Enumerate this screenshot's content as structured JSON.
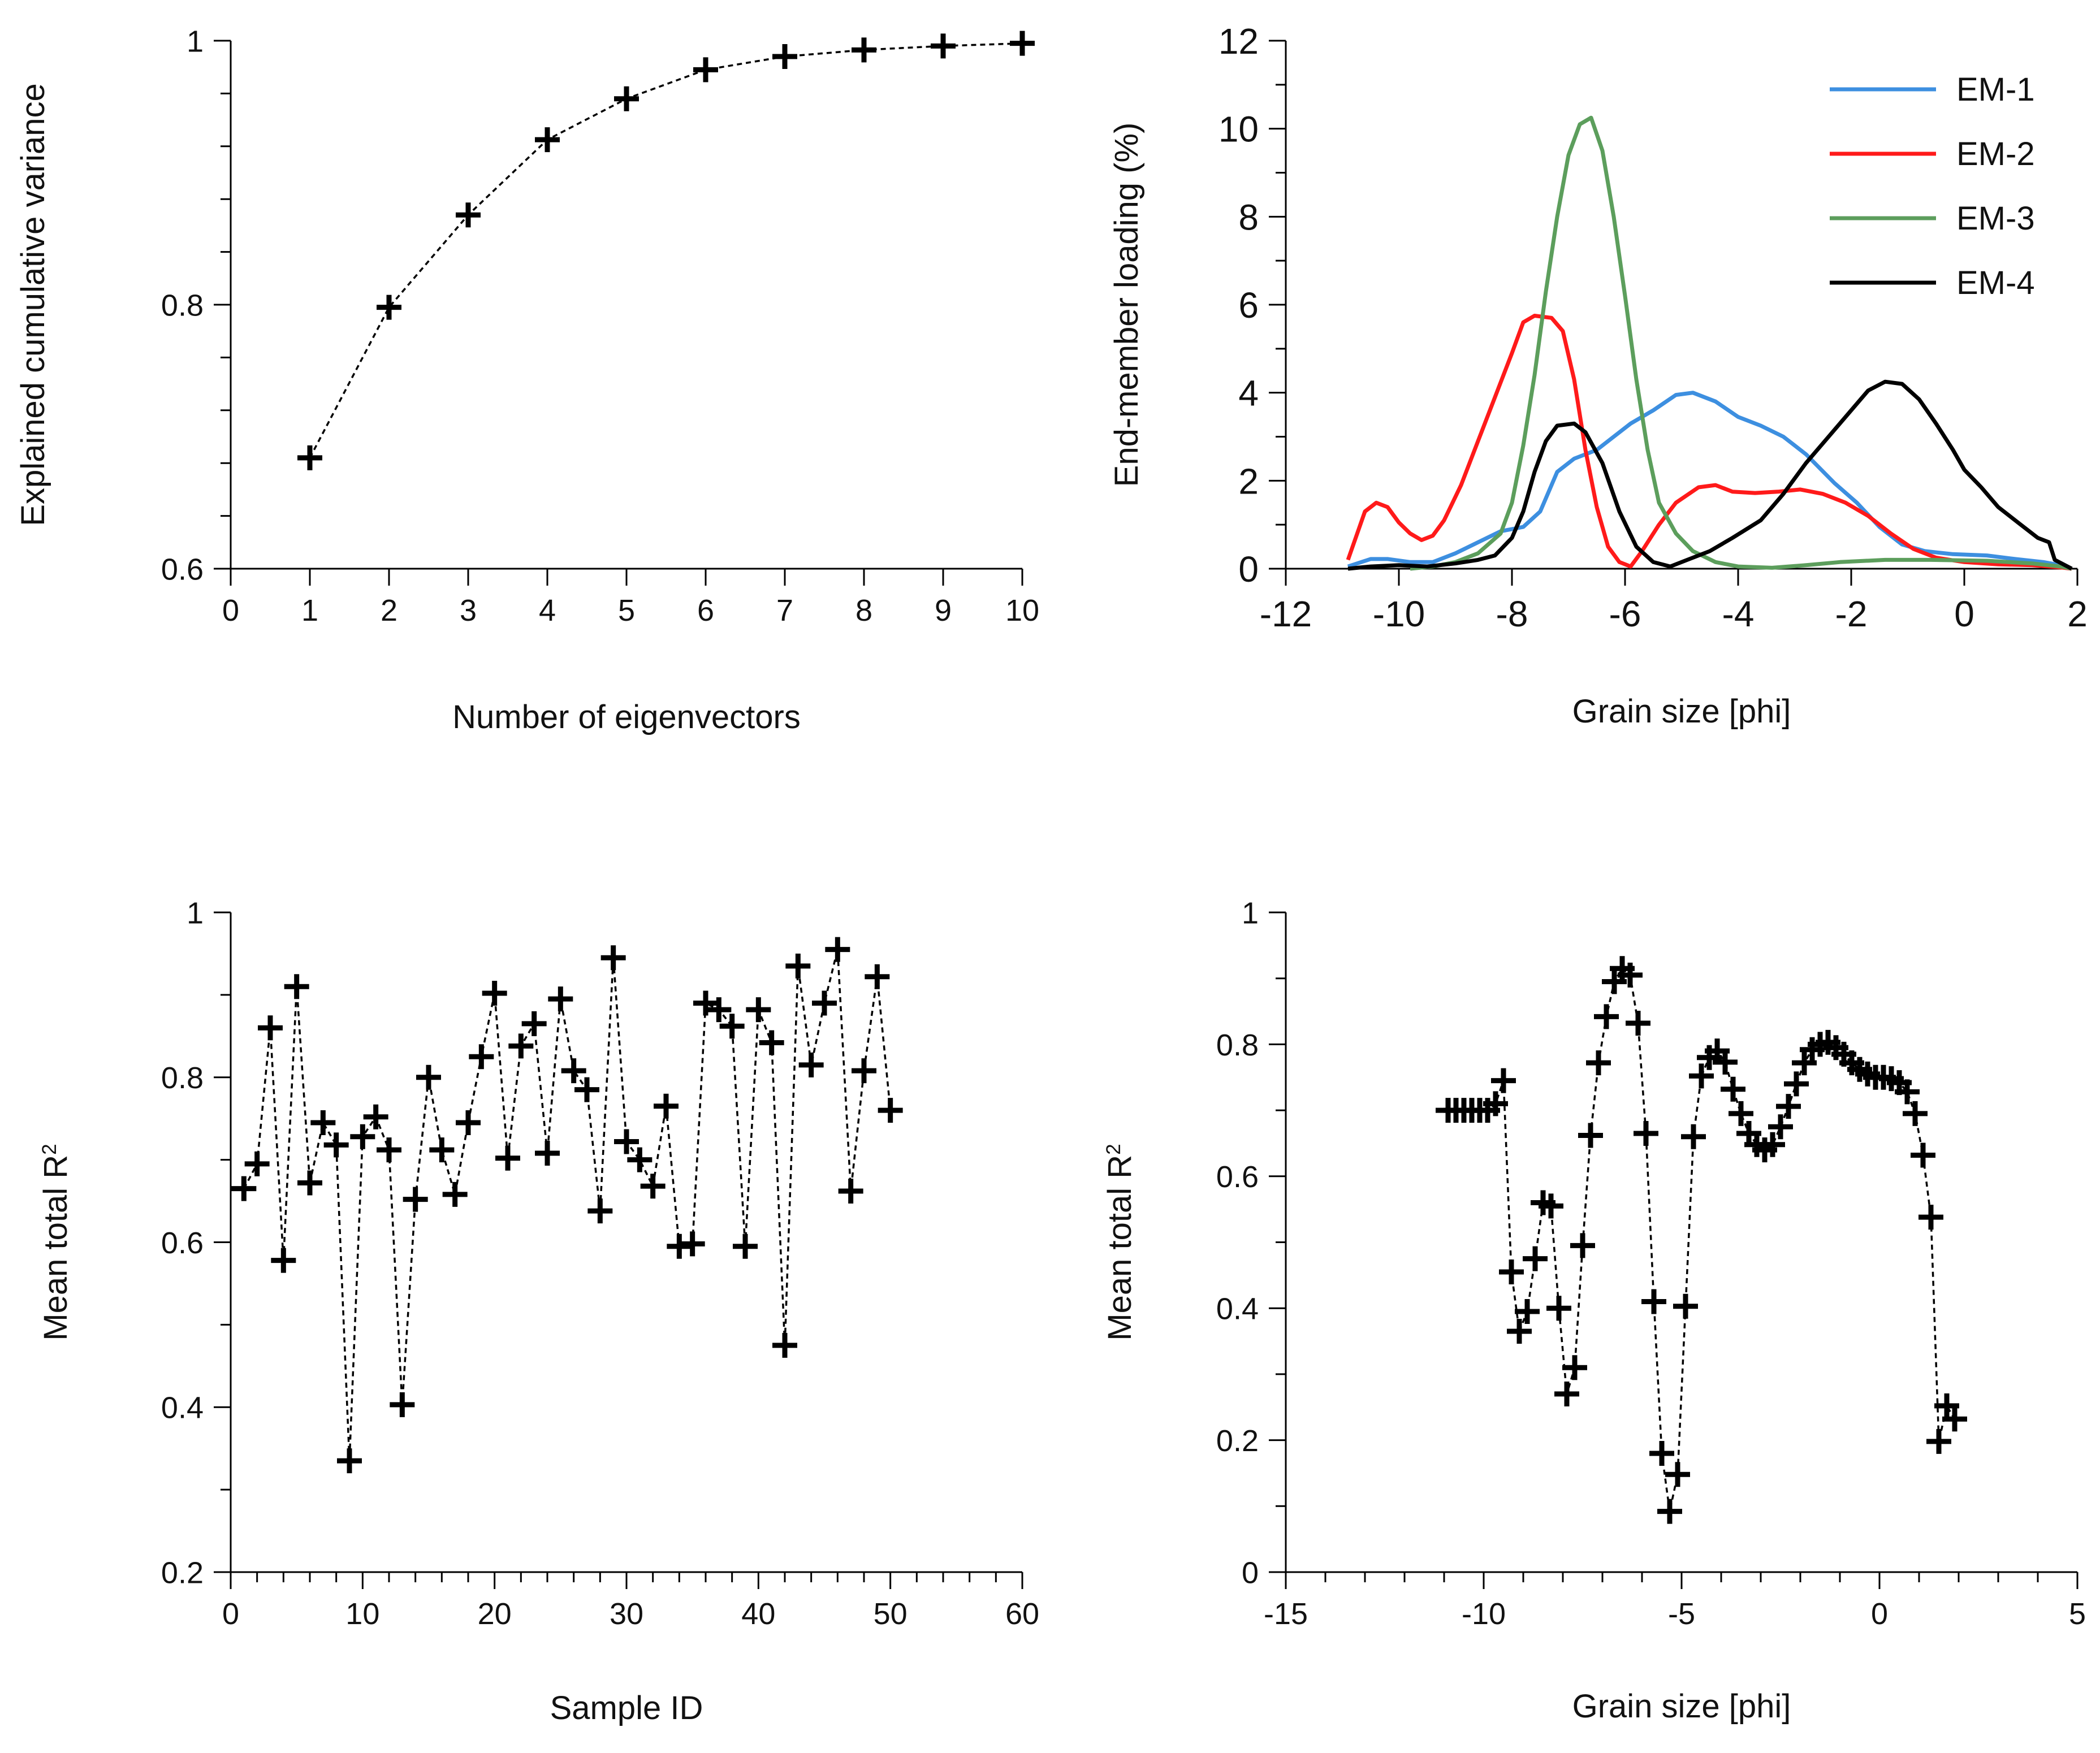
{
  "figure": {
    "panels": [
      {
        "id": "variance-panel"
      },
      {
        "id": "loading-panel"
      },
      {
        "id": "sample-panel"
      },
      {
        "id": "grain-panel"
      }
    ]
  },
  "chart_data": [
    {
      "type": "line",
      "name": "explained-variance",
      "title": "",
      "xlabel": "Number of eigenvectors",
      "ylabel": "Explained cumulative variance",
      "xlim": [
        0,
        10
      ],
      "ylim": [
        0.6,
        1
      ],
      "xticks": [
        0,
        1,
        2,
        3,
        4,
        5,
        6,
        7,
        8,
        9,
        10
      ],
      "xtick_labels": [
        "0",
        "1",
        "2",
        "3",
        "4",
        "5",
        "6",
        "7",
        "8",
        "9",
        "10"
      ],
      "yticks": [
        0.6,
        0.8,
        1
      ],
      "ytick_labels": [
        "0.6",
        "0.8",
        "1"
      ],
      "yminor": [
        0.6,
        0.64,
        0.68,
        0.72,
        0.76,
        0.8,
        0.84,
        0.88,
        0.92,
        0.96,
        1.0
      ],
      "marker": "plus",
      "line_style": "dashed",
      "color": "#000000",
      "x": [
        1,
        2,
        3,
        4,
        5,
        6,
        7,
        8,
        9,
        10
      ],
      "y": [
        0.684,
        0.798,
        0.868,
        0.925,
        0.956,
        0.978,
        0.988,
        0.993,
        0.996,
        0.998
      ]
    },
    {
      "type": "line",
      "name": "end-member-loadings",
      "title": "",
      "xlabel": "Grain size [phi]",
      "ylabel": "End-member loading (%)",
      "xlim": [
        -12,
        2
      ],
      "ylim": [
        0,
        12
      ],
      "xticks": [
        -12,
        -10,
        -8,
        -6,
        -4,
        -2,
        0,
        2
      ],
      "xtick_labels": [
        "-12",
        "-10",
        "-8",
        "-6",
        "-4",
        "-2",
        "0",
        "2"
      ],
      "yticks": [
        0,
        2,
        4,
        6,
        8,
        10,
        12
      ],
      "ytick_labels": [
        "0",
        "2",
        "4",
        "6",
        "8",
        "10",
        "12"
      ],
      "legend_position": "top-right",
      "series": [
        {
          "name": "EM-1",
          "color": "#3d8fe0",
          "points": [
            [
              -10.9,
              0.05
            ],
            [
              -10.5,
              0.22
            ],
            [
              -10.2,
              0.22
            ],
            [
              -9.8,
              0.15
            ],
            [
              -9.4,
              0.15
            ],
            [
              -9.0,
              0.35
            ],
            [
              -8.6,
              0.6
            ],
            [
              -8.2,
              0.85
            ],
            [
              -7.8,
              0.95
            ],
            [
              -7.5,
              1.3
            ],
            [
              -7.2,
              2.2
            ],
            [
              -6.9,
              2.5
            ],
            [
              -6.5,
              2.7
            ],
            [
              -6.2,
              3.0
            ],
            [
              -5.9,
              3.3
            ],
            [
              -5.5,
              3.6
            ],
            [
              -5.1,
              3.95
            ],
            [
              -4.8,
              4.0
            ],
            [
              -4.4,
              3.8
            ],
            [
              -4.0,
              3.45
            ],
            [
              -3.6,
              3.25
            ],
            [
              -3.2,
              3.0
            ],
            [
              -2.8,
              2.6
            ],
            [
              -2.3,
              1.95
            ],
            [
              -1.9,
              1.5
            ],
            [
              -1.5,
              0.95
            ],
            [
              -1.1,
              0.55
            ],
            [
              -0.7,
              0.4
            ],
            [
              -0.2,
              0.33
            ],
            [
              0.4,
              0.3
            ],
            [
              0.9,
              0.22
            ],
            [
              1.4,
              0.15
            ],
            [
              1.7,
              0.08
            ],
            [
              1.9,
              0.0
            ]
          ]
        },
        {
          "name": "EM-2",
          "color": "#ff1a1a",
          "points": [
            [
              -10.9,
              0.2
            ],
            [
              -10.6,
              1.3
            ],
            [
              -10.4,
              1.5
            ],
            [
              -10.2,
              1.4
            ],
            [
              -10.0,
              1.05
            ],
            [
              -9.8,
              0.8
            ],
            [
              -9.6,
              0.65
            ],
            [
              -9.4,
              0.75
            ],
            [
              -9.2,
              1.1
            ],
            [
              -8.9,
              1.9
            ],
            [
              -8.6,
              2.9
            ],
            [
              -8.3,
              3.9
            ],
            [
              -8.0,
              4.9
            ],
            [
              -7.8,
              5.6
            ],
            [
              -7.6,
              5.75
            ],
            [
              -7.3,
              5.7
            ],
            [
              -7.1,
              5.4
            ],
            [
              -6.9,
              4.3
            ],
            [
              -6.7,
              2.7
            ],
            [
              -6.5,
              1.4
            ],
            [
              -6.3,
              0.5
            ],
            [
              -6.1,
              0.15
            ],
            [
              -5.9,
              0.05
            ],
            [
              -5.7,
              0.4
            ],
            [
              -5.4,
              1.0
            ],
            [
              -5.1,
              1.5
            ],
            [
              -4.7,
              1.85
            ],
            [
              -4.4,
              1.9
            ],
            [
              -4.1,
              1.75
            ],
            [
              -3.7,
              1.72
            ],
            [
              -3.3,
              1.75
            ],
            [
              -2.9,
              1.8
            ],
            [
              -2.5,
              1.7
            ],
            [
              -2.1,
              1.5
            ],
            [
              -1.7,
              1.2
            ],
            [
              -1.3,
              0.8
            ],
            [
              -0.9,
              0.45
            ],
            [
              -0.5,
              0.25
            ],
            [
              0.0,
              0.15
            ],
            [
              0.6,
              0.1
            ],
            [
              1.2,
              0.08
            ],
            [
              1.7,
              0.03
            ],
            [
              1.9,
              0.0
            ]
          ]
        },
        {
          "name": "EM-3",
          "color": "#5c9e5c",
          "points": [
            [
              -9.8,
              0.0
            ],
            [
              -9.4,
              0.05
            ],
            [
              -9.0,
              0.15
            ],
            [
              -8.6,
              0.35
            ],
            [
              -8.2,
              0.8
            ],
            [
              -8.0,
              1.5
            ],
            [
              -7.8,
              2.8
            ],
            [
              -7.6,
              4.4
            ],
            [
              -7.4,
              6.3
            ],
            [
              -7.2,
              8.0
            ],
            [
              -7.0,
              9.4
            ],
            [
              -6.8,
              10.1
            ],
            [
              -6.6,
              10.25
            ],
            [
              -6.4,
              9.5
            ],
            [
              -6.2,
              8.0
            ],
            [
              -6.0,
              6.2
            ],
            [
              -5.8,
              4.3
            ],
            [
              -5.6,
              2.7
            ],
            [
              -5.4,
              1.5
            ],
            [
              -5.1,
              0.8
            ],
            [
              -4.8,
              0.4
            ],
            [
              -4.4,
              0.15
            ],
            [
              -4.0,
              0.05
            ],
            [
              -3.4,
              0.02
            ],
            [
              -2.8,
              0.08
            ],
            [
              -2.2,
              0.15
            ],
            [
              -1.4,
              0.2
            ],
            [
              -0.6,
              0.2
            ],
            [
              0.4,
              0.18
            ],
            [
              1.2,
              0.12
            ],
            [
              1.7,
              0.05
            ],
            [
              1.9,
              0.0
            ]
          ]
        },
        {
          "name": "EM-4",
          "color": "#000000",
          "points": [
            [
              -10.9,
              0.0
            ],
            [
              -10.5,
              0.05
            ],
            [
              -10.0,
              0.08
            ],
            [
              -9.5,
              0.05
            ],
            [
              -9.0,
              0.12
            ],
            [
              -8.6,
              0.2
            ],
            [
              -8.3,
              0.3
            ],
            [
              -8.0,
              0.7
            ],
            [
              -7.8,
              1.3
            ],
            [
              -7.6,
              2.2
            ],
            [
              -7.4,
              2.9
            ],
            [
              -7.2,
              3.25
            ],
            [
              -6.9,
              3.3
            ],
            [
              -6.7,
              3.1
            ],
            [
              -6.4,
              2.4
            ],
            [
              -6.1,
              1.3
            ],
            [
              -5.8,
              0.5
            ],
            [
              -5.5,
              0.15
            ],
            [
              -5.2,
              0.05
            ],
            [
              -4.9,
              0.2
            ],
            [
              -4.5,
              0.4
            ],
            [
              -4.1,
              0.7
            ],
            [
              -3.6,
              1.1
            ],
            [
              -3.2,
              1.7
            ],
            [
              -2.8,
              2.4
            ],
            [
              -2.4,
              3.0
            ],
            [
              -2.0,
              3.6
            ],
            [
              -1.7,
              4.05
            ],
            [
              -1.4,
              4.25
            ],
            [
              -1.1,
              4.2
            ],
            [
              -0.8,
              3.85
            ],
            [
              -0.5,
              3.3
            ],
            [
              -0.2,
              2.7
            ],
            [
              0.0,
              2.25
            ],
            [
              0.3,
              1.85
            ],
            [
              0.6,
              1.4
            ],
            [
              1.0,
              1.0
            ],
            [
              1.3,
              0.7
            ],
            [
              1.5,
              0.6
            ],
            [
              1.6,
              0.2
            ],
            [
              1.9,
              0.0
            ]
          ]
        }
      ]
    },
    {
      "type": "line",
      "name": "sample-r2",
      "title": "",
      "xlabel": "Sample ID",
      "ylabel_main": "Mean total R",
      "ylabel_sup": "2",
      "xlim": [
        0,
        60
      ],
      "ylim": [
        0.2,
        1
      ],
      "xticks": [
        0,
        10,
        20,
        30,
        40,
        50,
        60
      ],
      "xtick_labels": [
        "0",
        "10",
        "20",
        "30",
        "40",
        "50",
        "60"
      ],
      "xminor_step": 2,
      "yticks": [
        0.2,
        0.4,
        0.6,
        0.8,
        1
      ],
      "ytick_labels": [
        "0.2",
        "0.4",
        "0.6",
        "0.8",
        "1"
      ],
      "yminor_step": 0.1,
      "marker": "plus",
      "line_style": "dashed",
      "color": "#000000",
      "x": [
        1,
        2,
        3,
        4,
        5,
        6,
        7,
        8,
        9,
        10,
        11,
        12,
        13,
        14,
        15,
        16,
        17,
        18,
        19,
        20,
        21,
        22,
        23,
        24,
        25,
        26,
        27,
        28,
        29,
        30,
        31,
        32,
        33,
        34,
        35,
        36,
        37,
        38,
        39,
        40,
        41,
        42,
        43,
        44,
        45,
        46,
        47,
        48,
        49,
        50
      ],
      "y": [
        0.665,
        0.695,
        0.86,
        0.578,
        0.91,
        0.672,
        0.745,
        0.718,
        0.335,
        0.728,
        0.752,
        0.712,
        0.403,
        0.652,
        0.8,
        0.712,
        0.658,
        0.745,
        0.825,
        0.902,
        0.702,
        0.838,
        0.865,
        0.708,
        0.895,
        0.808,
        0.785,
        0.638,
        0.945,
        0.722,
        0.7,
        0.668,
        0.765,
        0.595,
        0.598,
        0.89,
        0.882,
        0.862,
        0.595,
        0.882,
        0.842,
        0.475,
        0.935,
        0.815,
        0.89,
        0.955,
        0.662,
        0.808,
        0.922,
        0.76
      ]
    },
    {
      "type": "line",
      "name": "grain-r2",
      "title": "",
      "xlabel": "Grain size [phi]",
      "ylabel_main": "Mean total R",
      "ylabel_sup": "2",
      "xlim": [
        -15,
        5
      ],
      "ylim": [
        0,
        1
      ],
      "xticks": [
        -15,
        -10,
        -5,
        0,
        5
      ],
      "xtick_labels": [
        "-15",
        "-10",
        "-5",
        "0",
        "5"
      ],
      "xminor_step": 1,
      "yticks": [
        0,
        0.2,
        0.4,
        0.6,
        0.8,
        1
      ],
      "ytick_labels": [
        "0",
        "0.2",
        "0.4",
        "0.6",
        "0.8",
        "1"
      ],
      "yminor_step": 0.1,
      "marker": "plus",
      "line_style": "dashed",
      "color": "#000000",
      "x": [
        -10.9,
        -10.7,
        -10.5,
        -10.3,
        -10.1,
        -9.9,
        -9.7,
        -9.5,
        -9.3,
        -9.1,
        -8.9,
        -8.7,
        -8.5,
        -8.3,
        -8.1,
        -7.9,
        -7.7,
        -7.5,
        -7.3,
        -7.1,
        -6.9,
        -6.7,
        -6.5,
        -6.3,
        -6.1,
        -5.9,
        -5.7,
        -5.5,
        -5.3,
        -5.1,
        -4.9,
        -4.7,
        -4.5,
        -4.3,
        -4.1,
        -3.9,
        -3.7,
        -3.5,
        -3.3,
        -3.1,
        -2.9,
        -2.7,
        -2.5,
        -2.3,
        -2.1,
        -1.9,
        -1.7,
        -1.5,
        -1.3,
        -1.1,
        -0.9,
        -0.7,
        -0.5,
        -0.3,
        -0.1,
        0.1,
        0.3,
        0.5,
        0.7,
        0.9,
        1.1,
        1.3,
        1.5,
        1.7,
        1.9
      ],
      "y": [
        0.7,
        0.7,
        0.7,
        0.7,
        0.7,
        0.7,
        0.71,
        0.745,
        0.455,
        0.365,
        0.395,
        0.475,
        0.56,
        0.555,
        0.4,
        0.27,
        0.31,
        0.495,
        0.662,
        0.772,
        0.842,
        0.895,
        0.915,
        0.905,
        0.832,
        0.665,
        0.41,
        0.18,
        0.092,
        0.148,
        0.403,
        0.66,
        0.752,
        0.78,
        0.79,
        0.773,
        0.732,
        0.695,
        0.665,
        0.648,
        0.64,
        0.648,
        0.675,
        0.706,
        0.74,
        0.772,
        0.792,
        0.8,
        0.803,
        0.795,
        0.785,
        0.772,
        0.762,
        0.755,
        0.75,
        0.75,
        0.748,
        0.742,
        0.728,
        0.695,
        0.632,
        0.538,
        0.198,
        0.252,
        0.232
      ]
    }
  ]
}
